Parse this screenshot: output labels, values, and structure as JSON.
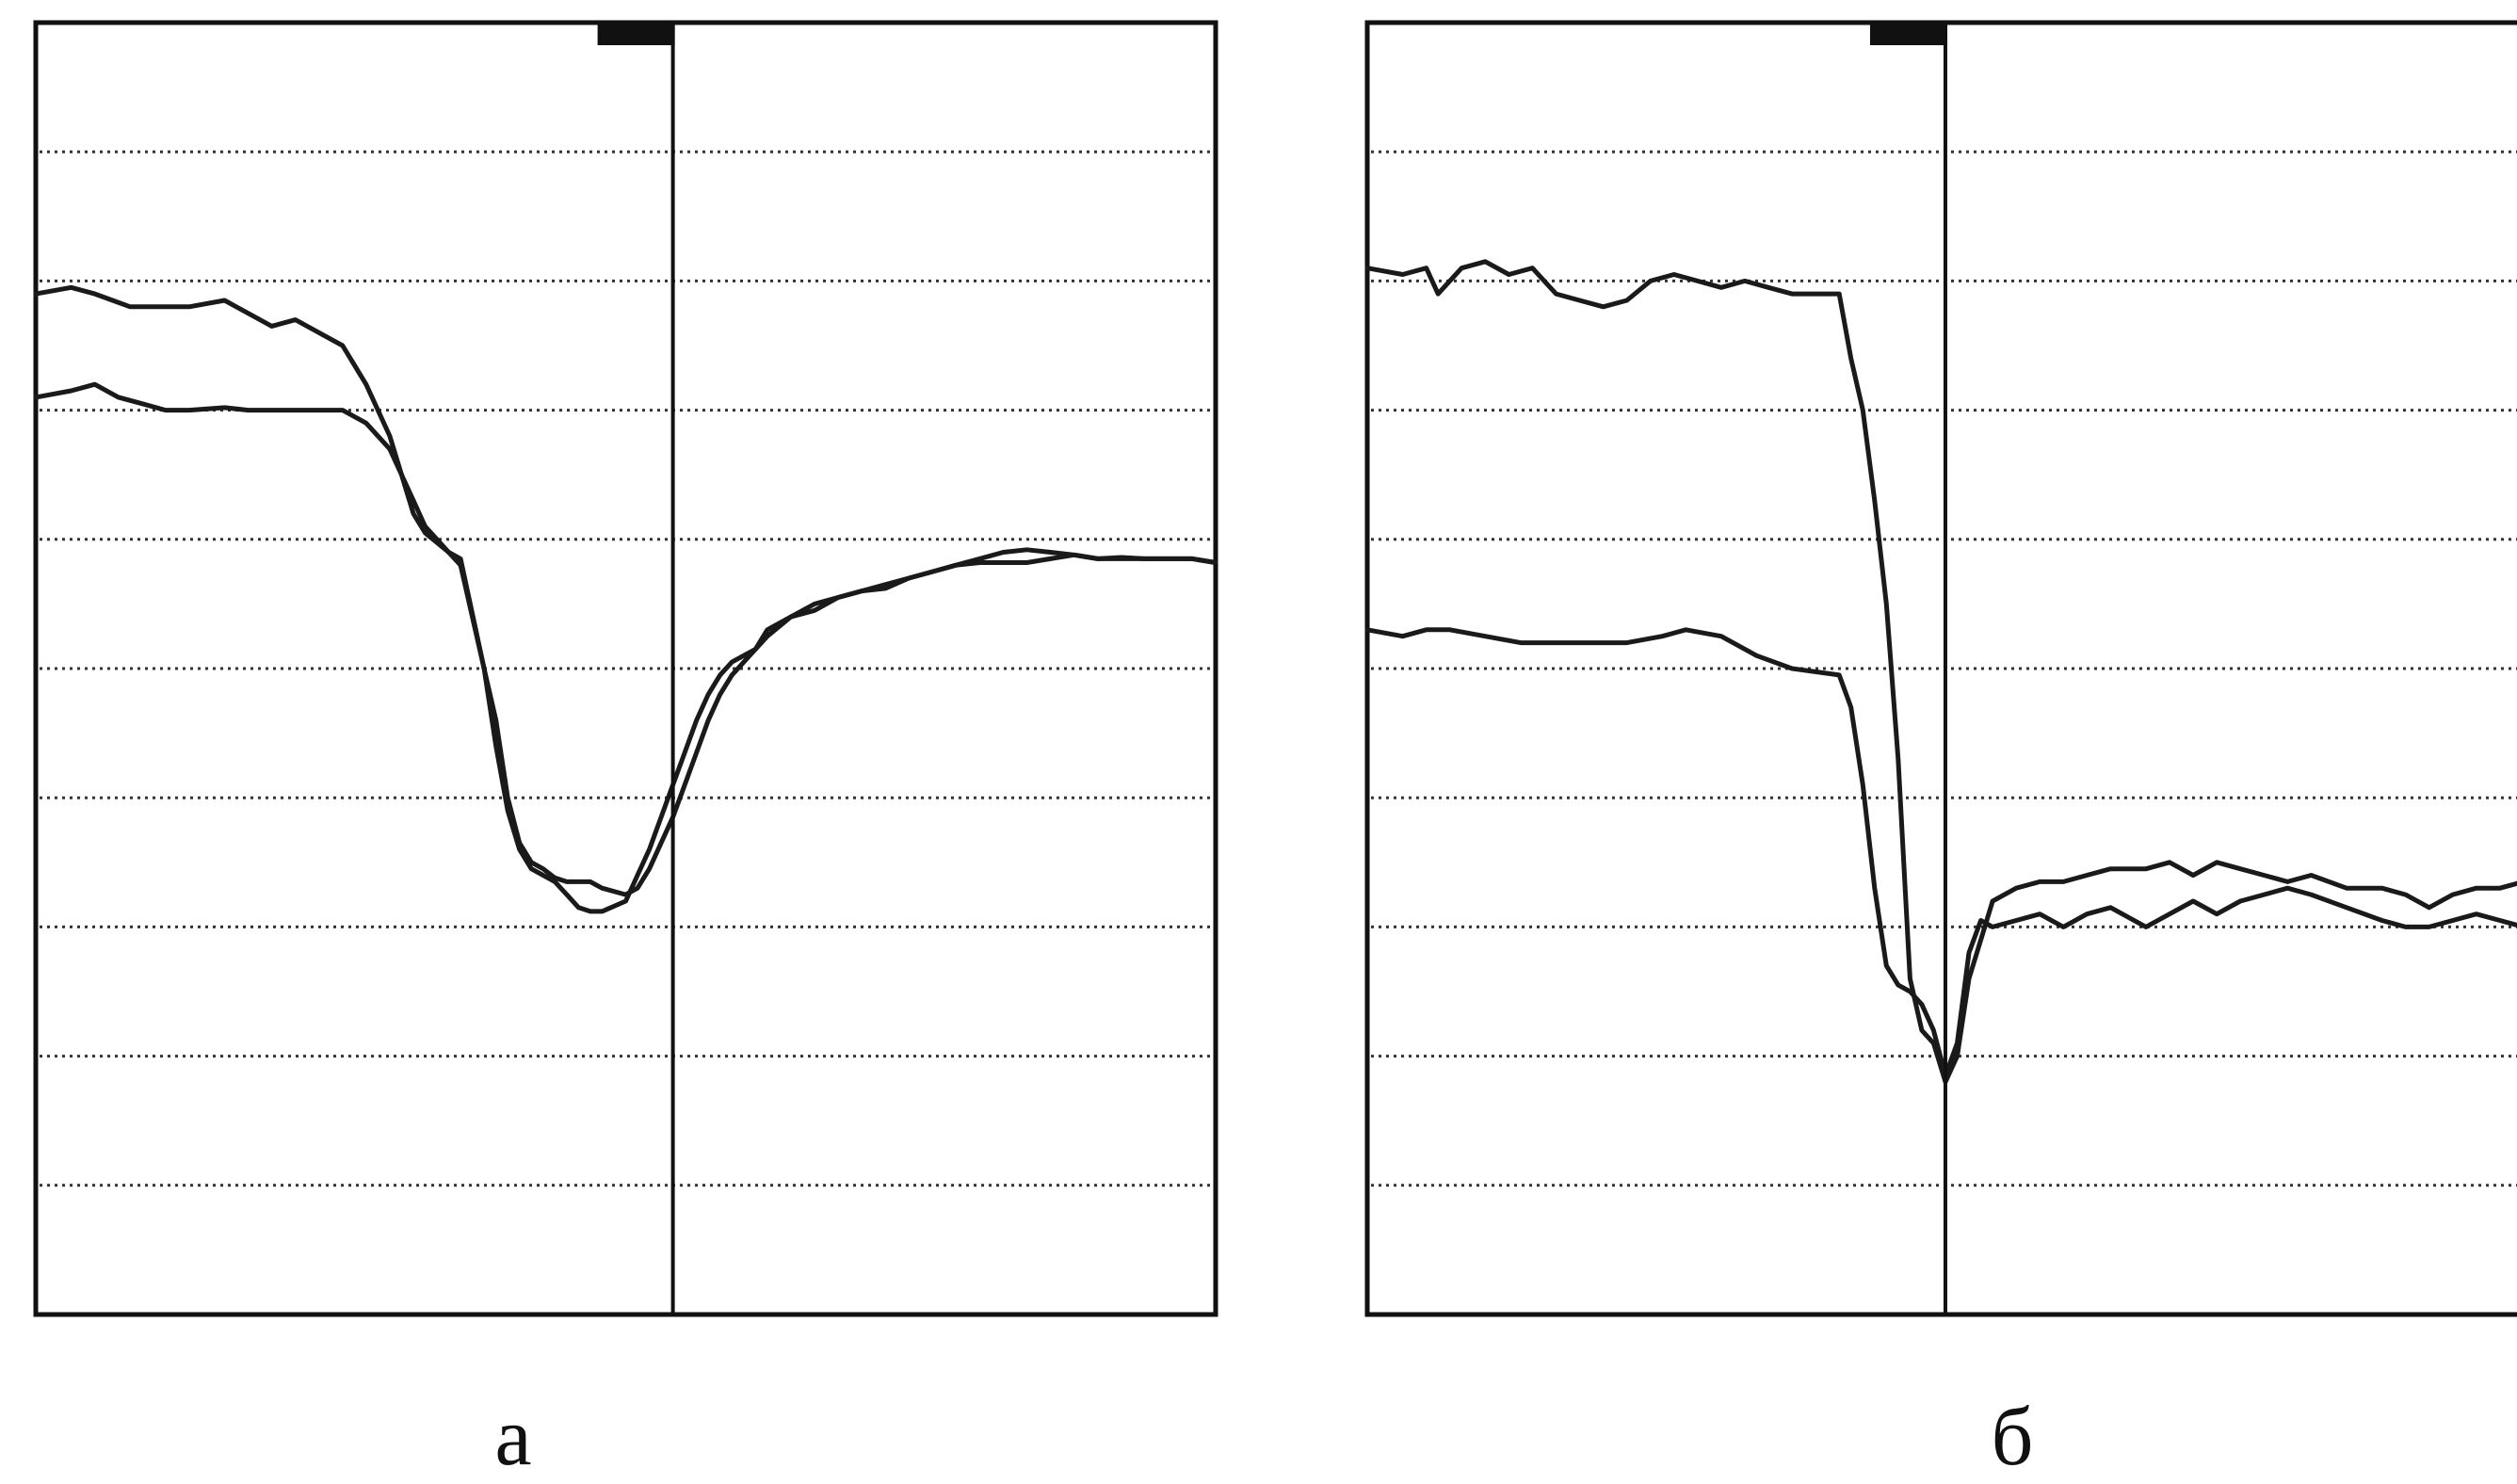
{
  "chart_data": [
    {
      "type": "line",
      "label": "а",
      "grid": true,
      "grid_style": "dotted",
      "xlim": [
        0,
        100
      ],
      "ylim": [
        0,
        10
      ],
      "marker_x": 54,
      "series": [
        {
          "x": [
            0,
            3,
            5,
            8,
            10,
            13,
            16,
            18,
            20,
            22,
            24,
            26,
            28,
            30,
            32,
            33,
            35,
            36,
            38,
            39,
            40,
            41,
            42,
            43,
            44,
            45,
            46,
            47,
            48,
            50,
            51,
            52,
            53,
            54,
            55,
            56,
            57,
            58,
            59,
            61,
            62,
            64,
            66,
            68,
            70,
            72,
            74,
            76,
            78,
            80,
            82,
            84,
            86,
            88,
            90,
            92,
            94,
            96,
            98,
            100
          ],
          "y": [
            7.9,
            7.95,
            7.9,
            7.8,
            7.8,
            7.8,
            7.85,
            7.75,
            7.65,
            7.7,
            7.6,
            7.5,
            7.2,
            6.8,
            6.2,
            6.05,
            5.9,
            5.8,
            5.0,
            4.6,
            4.0,
            3.65,
            3.5,
            3.45,
            3.38,
            3.35,
            3.35,
            3.35,
            3.3,
            3.25,
            3.3,
            3.45,
            3.65,
            3.85,
            4.1,
            4.35,
            4.6,
            4.8,
            4.95,
            5.15,
            5.25,
            5.4,
            5.45,
            5.55,
            5.6,
            5.65,
            5.7,
            5.75,
            5.8,
            5.82,
            5.82,
            5.82,
            5.85,
            5.88,
            5.85,
            5.85,
            5.85,
            5.85,
            5.85,
            5.82
          ]
        },
        {
          "x": [
            0,
            3,
            5,
            7,
            9,
            11,
            13,
            16,
            18,
            20,
            22,
            24,
            26,
            28,
            30,
            32,
            33,
            35,
            36,
            38,
            39,
            40,
            41,
            42,
            43,
            44,
            45,
            46,
            47,
            48,
            50,
            51,
            52,
            53,
            54,
            55,
            56,
            57,
            58,
            59,
            61,
            62,
            64,
            66,
            68,
            70,
            72,
            74,
            76,
            78,
            80,
            82,
            84,
            86,
            88,
            90,
            92,
            94,
            96,
            98,
            100
          ],
          "y": [
            7.1,
            7.15,
            7.2,
            7.1,
            7.05,
            7.0,
            7.0,
            7.02,
            7.0,
            7.0,
            7.0,
            7.0,
            7.0,
            6.9,
            6.7,
            6.3,
            6.1,
            5.9,
            5.85,
            5.0,
            4.4,
            3.9,
            3.6,
            3.45,
            3.4,
            3.35,
            3.25,
            3.15,
            3.12,
            3.12,
            3.2,
            3.4,
            3.6,
            3.85,
            4.1,
            4.35,
            4.6,
            4.8,
            4.95,
            5.05,
            5.15,
            5.3,
            5.4,
            5.5,
            5.55,
            5.6,
            5.62,
            5.7,
            5.75,
            5.8,
            5.85,
            5.9,
            5.92,
            5.9,
            5.88,
            5.85,
            5.86,
            5.85,
            5.85,
            5.85,
            5.82
          ]
        }
      ]
    },
    {
      "type": "line",
      "label": "б",
      "grid": true,
      "grid_style": "dotted",
      "xlim": [
        0,
        100
      ],
      "ylim": [
        0,
        10
      ],
      "marker_x": 49,
      "series": [
        {
          "x": [
            0,
            3,
            5,
            6,
            8,
            10,
            12,
            14,
            16,
            18,
            20,
            22,
            24,
            26,
            28,
            30,
            32,
            34,
            36,
            38,
            40,
            41,
            42,
            43,
            44,
            45,
            46,
            47,
            48,
            49,
            50,
            51,
            52,
            53,
            55,
            57,
            59,
            61,
            63,
            66,
            68,
            70,
            72,
            74,
            76,
            78,
            80,
            83,
            86,
            88,
            90,
            92,
            94,
            96,
            98,
            100
          ],
          "y": [
            8.1,
            8.05,
            8.1,
            7.9,
            8.1,
            8.15,
            8.05,
            8.1,
            7.9,
            7.85,
            7.8,
            7.85,
            8.0,
            8.05,
            8.0,
            7.95,
            8.0,
            7.95,
            7.9,
            7.9,
            7.9,
            7.4,
            7.0,
            6.3,
            5.5,
            4.3,
            2.6,
            2.2,
            2.1,
            1.8,
            2.0,
            2.6,
            2.9,
            3.2,
            3.3,
            3.35,
            3.35,
            3.4,
            3.45,
            3.45,
            3.5,
            3.4,
            3.5,
            3.45,
            3.4,
            3.35,
            3.4,
            3.3,
            3.3,
            3.25,
            3.15,
            3.25,
            3.3,
            3.3,
            3.35,
            3.3
          ]
        },
        {
          "x": [
            0,
            3,
            5,
            7,
            10,
            13,
            16,
            19,
            22,
            25,
            27,
            30,
            33,
            36,
            40,
            41,
            42,
            43,
            44,
            45,
            46,
            47,
            48,
            49,
            50,
            51,
            52,
            53,
            55,
            57,
            59,
            61,
            63,
            66,
            68,
            70,
            72,
            74,
            76,
            78,
            80,
            83,
            86,
            88,
            90,
            92,
            94,
            96,
            98,
            100
          ],
          "y": [
            5.3,
            5.25,
            5.3,
            5.3,
            5.25,
            5.2,
            5.2,
            5.2,
            5.2,
            5.25,
            5.3,
            5.25,
            5.1,
            5.0,
            4.95,
            4.7,
            4.1,
            3.3,
            2.7,
            2.55,
            2.5,
            2.4,
            2.2,
            1.85,
            2.1,
            2.8,
            3.05,
            3.0,
            3.05,
            3.1,
            3.0,
            3.1,
            3.15,
            3.0,
            3.1,
            3.2,
            3.1,
            3.2,
            3.25,
            3.3,
            3.25,
            3.15,
            3.05,
            3.0,
            3.0,
            3.05,
            3.1,
            3.05,
            3.0,
            2.95
          ]
        }
      ]
    }
  ],
  "colors": {
    "line": "#1a1a1a",
    "grid": "#333333",
    "frame": "#111111",
    "background": "#ffffff"
  }
}
